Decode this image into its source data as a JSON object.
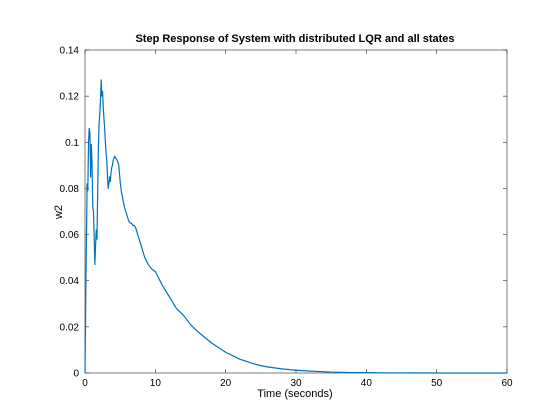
{
  "chart_data": {
    "type": "line",
    "title": "Step Response of System with distributed LQR and all states",
    "xlabel": "Time (seconds)",
    "ylabel": "w2",
    "xlim": [
      0,
      60
    ],
    "ylim": [
      0,
      0.14
    ],
    "xticks": [
      0,
      10,
      20,
      30,
      40,
      50,
      60
    ],
    "yticks": [
      0,
      0.02,
      0.04,
      0.06,
      0.08,
      0.1,
      0.12,
      0.14
    ],
    "xtick_labels": [
      "0",
      "10",
      "20",
      "30",
      "40",
      "50",
      "60"
    ],
    "ytick_labels": [
      "0",
      "0.02",
      "0.04",
      "0.06",
      "0.08",
      "0.1",
      "0.12",
      "0.14"
    ],
    "grid": false,
    "series": [
      {
        "color": "#0072bd",
        "x": [
          0,
          0.15,
          0.3,
          0.4,
          0.5,
          0.6,
          0.7,
          0.8,
          0.9,
          1.0,
          1.1,
          1.2,
          1.3,
          1.4,
          1.5,
          1.6,
          1.7,
          1.8,
          1.9,
          2.0,
          2.1,
          2.2,
          2.3,
          2.4,
          2.5,
          2.6,
          2.7,
          2.8,
          2.9,
          3.0,
          3.1,
          3.2,
          3.3,
          3.4,
          3.5,
          3.6,
          3.7,
          3.8,
          3.9,
          4.0,
          4.2,
          4.4,
          4.6,
          4.8,
          5.0,
          5.2,
          5.4,
          5.6,
          5.8,
          6.0,
          6.2,
          6.4,
          6.6,
          6.8,
          7.0,
          7.2,
          7.5,
          8.0,
          8.5,
          9.0,
          9.5,
          10,
          11,
          12,
          13,
          14,
          15,
          16,
          17,
          18,
          19,
          20,
          21,
          22,
          23,
          24,
          25,
          26,
          28,
          30,
          32,
          35,
          38,
          41,
          45,
          50,
          55,
          60
        ],
        "y": [
          0,
          0.045,
          0.082,
          0.079,
          0.1,
          0.106,
          0.104,
          0.085,
          0.099,
          0.091,
          0.072,
          0.07,
          0.06,
          0.047,
          0.055,
          0.062,
          0.058,
          0.078,
          0.097,
          0.108,
          0.112,
          0.118,
          0.127,
          0.12,
          0.122,
          0.115,
          0.11,
          0.106,
          0.1,
          0.095,
          0.092,
          0.085,
          0.08,
          0.082,
          0.085,
          0.083,
          0.087,
          0.089,
          0.09,
          0.092,
          0.094,
          0.093,
          0.092,
          0.09,
          0.083,
          0.078,
          0.075,
          0.072,
          0.07,
          0.068,
          0.066,
          0.065,
          0.065,
          0.064,
          0.064,
          0.063,
          0.06,
          0.055,
          0.05,
          0.047,
          0.045,
          0.044,
          0.038,
          0.033,
          0.028,
          0.025,
          0.021,
          0.018,
          0.0155,
          0.013,
          0.011,
          0.009,
          0.0075,
          0.006,
          0.005,
          0.004,
          0.0032,
          0.0026,
          0.0018,
          0.0012,
          0.0008,
          0.0004,
          0.0002,
          0.0001,
          4e-05,
          1e-05,
          0,
          0
        ]
      }
    ]
  }
}
